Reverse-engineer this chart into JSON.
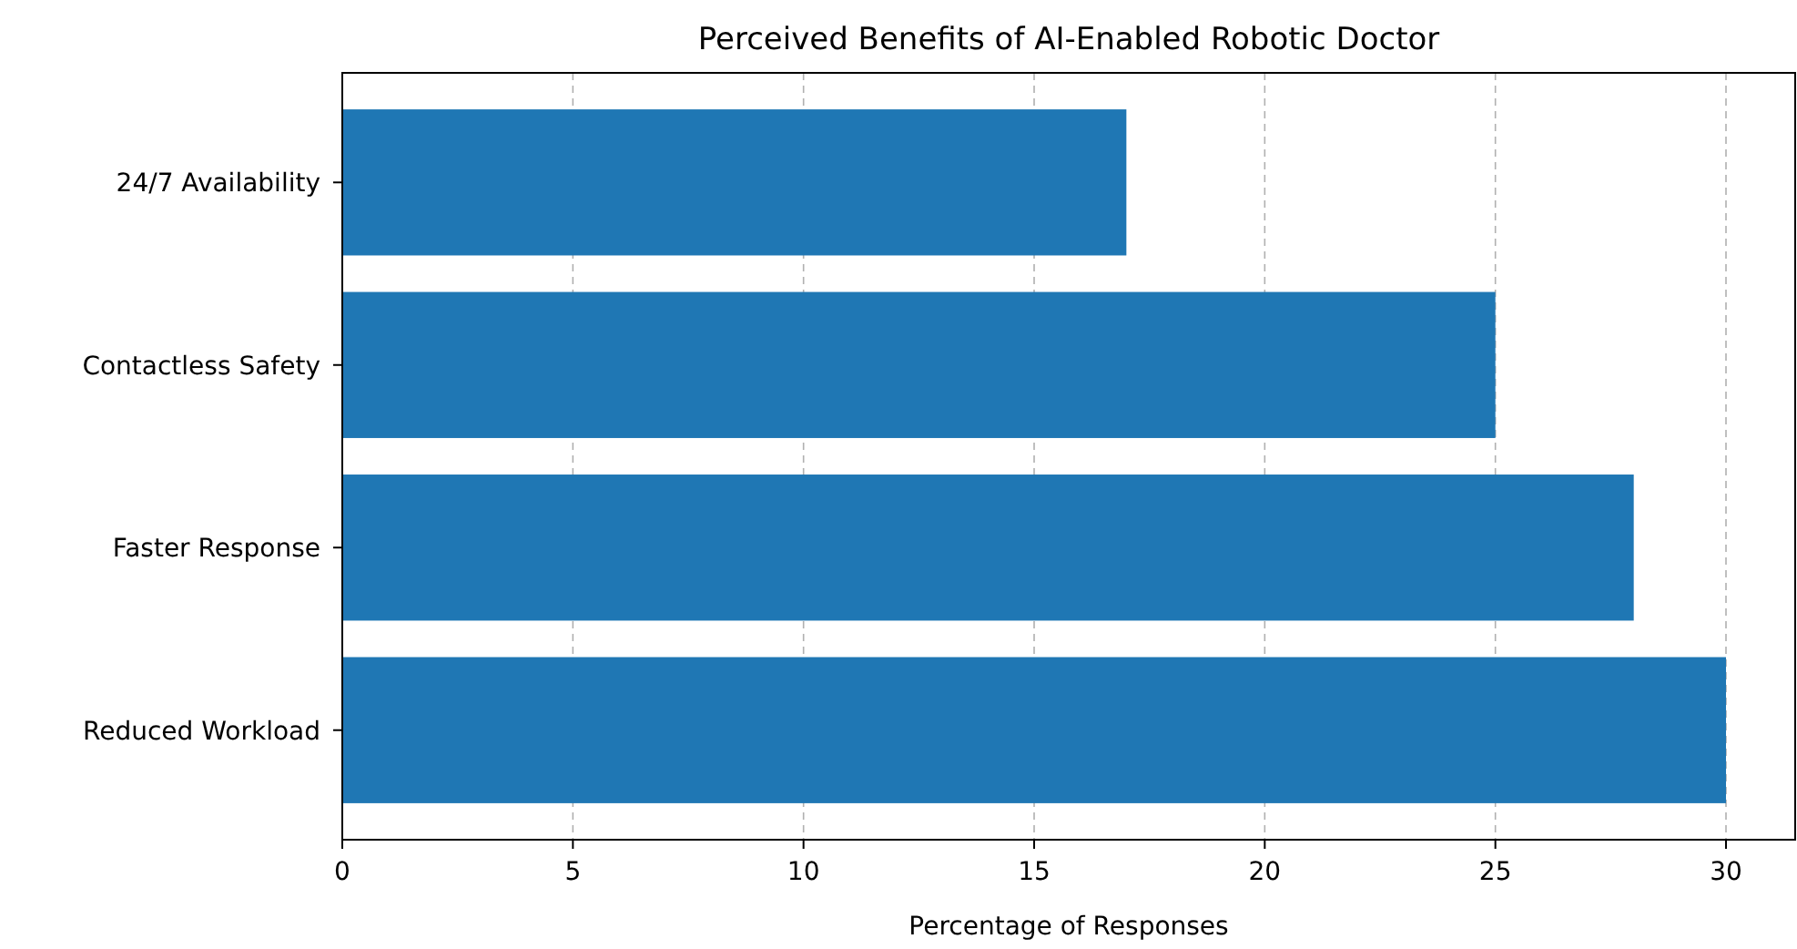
{
  "chart_data": {
    "type": "bar",
    "orientation": "horizontal",
    "title": "Perceived Benefits of AI-Enabled Robotic Doctor",
    "xlabel": "Percentage of Responses",
    "categories": [
      "24/7 Availability",
      "Contactless Safety",
      "Faster Response",
      "Reduced Workload"
    ],
    "values": [
      17,
      25,
      28,
      30
    ],
    "color": "#1f77b4",
    "xlim": [
      0,
      31.5
    ],
    "xticks": [
      0,
      5,
      10,
      15,
      20,
      25,
      30
    ],
    "grid": "x"
  }
}
